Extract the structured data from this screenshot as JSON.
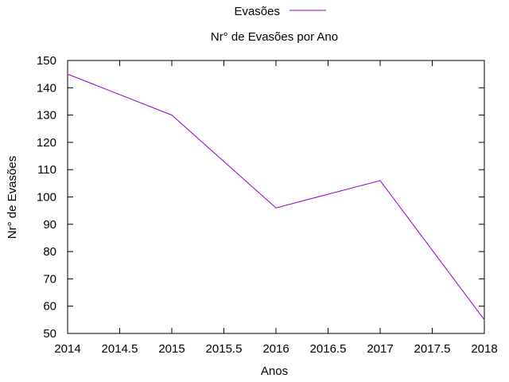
{
  "chart_data": {
    "type": "line",
    "title": "Nr° de Evasões por Ano",
    "xlabel": "Anos",
    "ylabel": "Nr° de Evasões",
    "xlim": [
      2014,
      2018
    ],
    "ylim": [
      50,
      150
    ],
    "x_ticks": [
      "2014",
      "2014.5",
      "2015",
      "2015.5",
      "2016",
      "2016.5",
      "2017",
      "2017.5",
      "2018"
    ],
    "y_ticks": [
      "50",
      "60",
      "70",
      "80",
      "90",
      "100",
      "110",
      "120",
      "130",
      "140",
      "150"
    ],
    "grid": false,
    "legend_position": "top-center",
    "series": [
      {
        "name": "Evasões",
        "color": "#9400d3",
        "x": [
          2014,
          2015,
          2016,
          2017,
          2018
        ],
        "values": [
          145,
          130,
          96,
          106,
          55
        ]
      }
    ]
  }
}
